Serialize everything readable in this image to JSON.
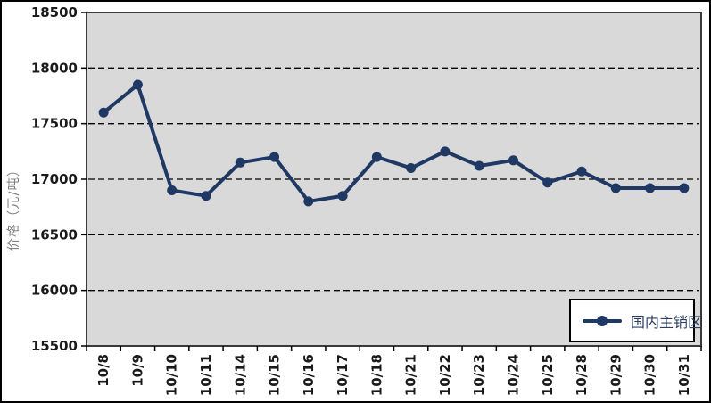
{
  "chart_data": {
    "type": "line",
    "categories": [
      "10/8",
      "10/9",
      "10/10",
      "10/11",
      "10/14",
      "10/15",
      "10/16",
      "10/17",
      "10/18",
      "10/21",
      "10/22",
      "10/23",
      "10/24",
      "10/25",
      "10/28",
      "10/29",
      "10/30",
      "10/31"
    ],
    "series": [
      {
        "name": "国内主销区",
        "values": [
          17600,
          17850,
          16900,
          16850,
          17150,
          17200,
          16800,
          16850,
          17200,
          17100,
          17250,
          17120,
          17170,
          16970,
          17070,
          16920,
          16920,
          16920
        ]
      }
    ],
    "title": "",
    "xlabel": "",
    "ylabel": "价格（元/吨）",
    "ylim": [
      15500,
      18500
    ],
    "yticks": [
      15500,
      16000,
      16500,
      17000,
      17500,
      18000,
      18500
    ],
    "gridlines": [
      16000,
      16500,
      17000,
      17500,
      18000
    ],
    "grid": "horizontal-dashed",
    "legend_position": "bottom-right",
    "legend_entries": [
      "国内主销区"
    ]
  },
  "colors": {
    "line": "#1F3864",
    "plot_bg": "#D9D9D9",
    "plot_border": "#3A3A3A",
    "gridline": "#000000",
    "axis_title": "#808080",
    "tick_label": "#1A1A1A",
    "legend_text": "#2E3E63",
    "frame_border": "#000000"
  }
}
